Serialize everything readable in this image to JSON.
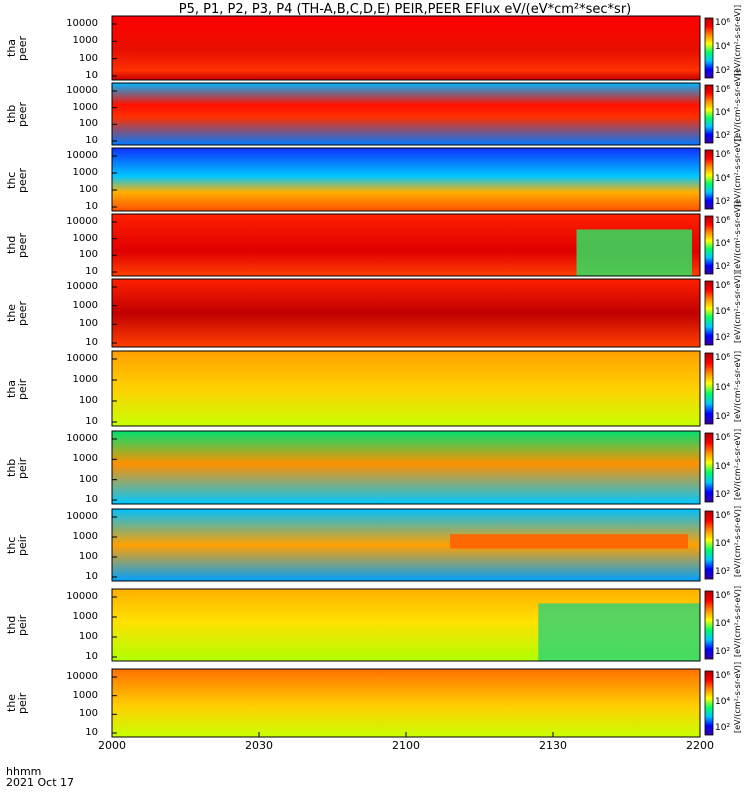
{
  "chart_data": {
    "type": "heatmap",
    "title": "P5, P1, P2, P3, P4 (TH-A,B,C,D,E) PEIR,PEER EFlux eV/(eV*cm²*sec*sr)",
    "xlabel": "hhmm",
    "date": "2021 Oct 17",
    "x_ticks": [
      "2000",
      "2030",
      "2100",
      "2130",
      "2200"
    ],
    "x_tick_hours": [
      20.0,
      20.5,
      21.0,
      21.5,
      22.0
    ],
    "xlim_hours": [
      20.0,
      22.0
    ],
    "y_scale": "log",
    "y_ticks": [
      "10",
      "100",
      "1000",
      "10000"
    ],
    "colorbar": {
      "scale": "log",
      "ticks": [
        "10²",
        "10⁴",
        "10⁶"
      ],
      "range": [
        1,
        1000000
      ],
      "unit_label": "[eV/(cm²-s-sr-eV)]",
      "colors": [
        "#3a00a0",
        "#0000ff",
        "#00c8ff",
        "#00ff64",
        "#ffff00",
        "#ff8c00",
        "#ff0000",
        "#b40000"
      ]
    },
    "panels": [
      {
        "probe": "tha",
        "species": "peer",
        "label": "tha peer",
        "dominant_level": "red"
      },
      {
        "probe": "thb",
        "species": "peer",
        "label": "thb peer",
        "dominant_level": "red band with blue background"
      },
      {
        "probe": "thc",
        "species": "peer",
        "label": "thc peer",
        "dominant_level": "blue noise with yellow/red low-energy band"
      },
      {
        "probe": "thd",
        "species": "peer",
        "label": "thd peer",
        "dominant_level": "red, green after 2135"
      },
      {
        "probe": "the",
        "species": "peer",
        "label": "the peer",
        "dominant_level": "red"
      },
      {
        "probe": "tha",
        "species": "peir",
        "label": "tha peir",
        "dominant_level": "yellow/orange"
      },
      {
        "probe": "thb",
        "species": "peir",
        "label": "thb peir",
        "dominant_level": "green with orange band"
      },
      {
        "probe": "thc",
        "species": "peir",
        "label": "thc peir",
        "dominant_level": "green/blue noise with orange band after 2108"
      },
      {
        "probe": "thd",
        "species": "peir",
        "label": "thd peir",
        "dominant_level": "yellow, green after 2130"
      },
      {
        "probe": "the",
        "species": "peir",
        "label": "the peir",
        "dominant_level": "yellow/orange"
      }
    ]
  }
}
